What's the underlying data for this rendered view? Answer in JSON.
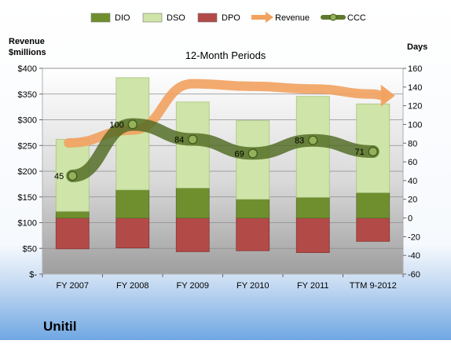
{
  "chart_data": {
    "type": "bar",
    "title": "12-Month Periods",
    "company": "Unitil",
    "left_axis_label_line1": "Revenue",
    "left_axis_label_line2": "$millions",
    "right_axis_label": "Days",
    "categories": [
      "FY 2007",
      "FY 2008",
      "FY 2009",
      "FY 2010",
      "FY 2011",
      "TTM 9-2012"
    ],
    "left_ylim": [
      0,
      400
    ],
    "left_ticks": [
      0,
      50,
      100,
      150,
      200,
      250,
      300,
      350,
      400
    ],
    "left_tick_labels": [
      "$-",
      "$50",
      "$100",
      "$150",
      "$200",
      "$250",
      "$300",
      "$350",
      "$400"
    ],
    "right_ylim": [
      -60,
      160
    ],
    "right_ticks": [
      -60,
      -40,
      -20,
      0,
      20,
      40,
      60,
      80,
      100,
      120,
      140,
      160
    ],
    "legend_position": "top",
    "series": [
      {
        "name": "DIO",
        "axis": "right",
        "values": [
          7,
          30,
          32,
          20,
          22,
          27
        ],
        "color": "#6f8f2e"
      },
      {
        "name": "DSO",
        "axis": "right",
        "values": [
          77,
          120,
          92,
          84,
          108,
          95
        ],
        "color": "#cfe4a8"
      },
      {
        "name": "DPO",
        "axis": "right",
        "values": [
          -33,
          -32,
          -36,
          -35,
          -37,
          -25
        ],
        "color": "#b24a48"
      },
      {
        "name": "Revenue",
        "axis": "left",
        "values": [
          255,
          280,
          370,
          365,
          360,
          350
        ],
        "color": "#f2a15f"
      },
      {
        "name": "CCC",
        "axis": "right",
        "values": [
          45,
          100,
          84,
          69,
          83,
          71
        ],
        "color": "#5f7a2c",
        "labels": [
          "45",
          "100",
          "84",
          "69",
          "83",
          "71"
        ]
      }
    ],
    "legend": [
      {
        "name": "DIO",
        "color": "#6f8f2e",
        "kind": "box"
      },
      {
        "name": "DSO",
        "color": "#cfe4a8",
        "kind": "box"
      },
      {
        "name": "DPO",
        "color": "#b24a48",
        "kind": "box"
      },
      {
        "name": "Revenue",
        "color": "#f2a15f",
        "kind": "arrow"
      },
      {
        "name": "CCC",
        "color": "#5f7a2c",
        "kind": "line-dot"
      }
    ]
  }
}
